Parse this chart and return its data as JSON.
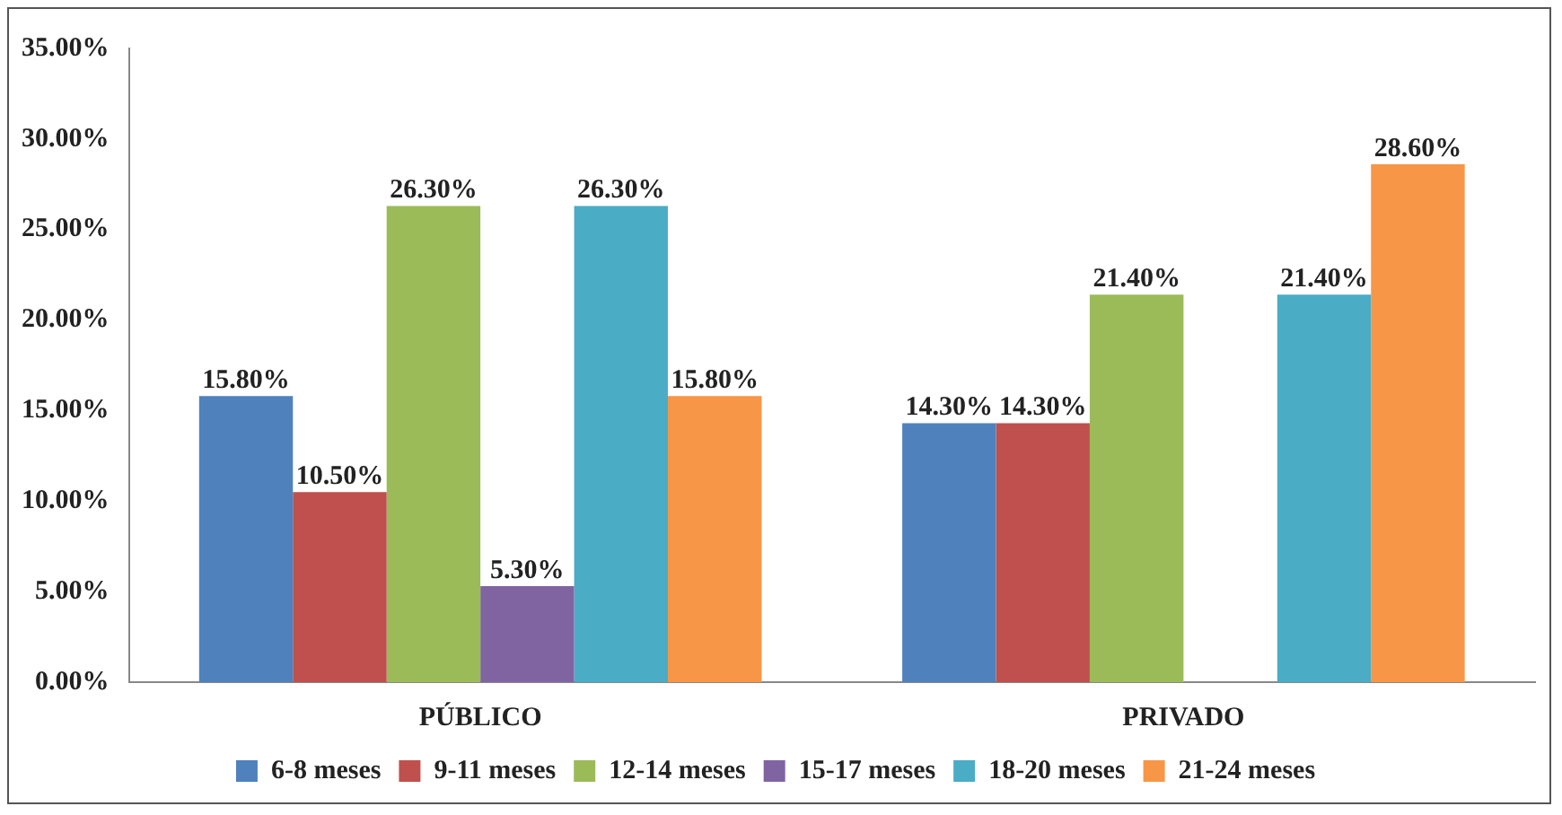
{
  "chart_data": {
    "type": "bar",
    "categories": [
      "PÚBLICO",
      "PRIVADO"
    ],
    "series": [
      {
        "name": "6-8 meses",
        "color": "#4f81bd",
        "values": [
          15.8,
          14.3
        ],
        "value_labels": [
          "15.80%",
          "14.30%"
        ]
      },
      {
        "name": "9-11 meses",
        "color": "#c0504d",
        "values": [
          10.5,
          14.3
        ],
        "value_labels": [
          "10.50%",
          "14.30%"
        ]
      },
      {
        "name": "12-14 meses",
        "color": "#9bbb59",
        "values": [
          26.3,
          21.4
        ],
        "value_labels": [
          "26.30%",
          "21.40%"
        ]
      },
      {
        "name": "15-17 meses",
        "color": "#8064a2",
        "values": [
          5.3,
          null
        ],
        "value_labels": [
          "5.30%",
          null
        ]
      },
      {
        "name": "18-20 meses",
        "color": "#4bacc6",
        "values": [
          26.3,
          21.4
        ],
        "value_labels": [
          "26.30%",
          "21.40%"
        ]
      },
      {
        "name": "21-24 meses",
        "color": "#f79646",
        "values": [
          15.8,
          28.6
        ],
        "value_labels": [
          "15.80%",
          "28.60%"
        ]
      }
    ],
    "ylim": [
      0,
      35
    ],
    "yticks": [
      {
        "value": 0,
        "label": "0.00%"
      },
      {
        "value": 5,
        "label": "5.00%"
      },
      {
        "value": 10,
        "label": "10.00%"
      },
      {
        "value": 15,
        "label": "15.00%"
      },
      {
        "value": 20,
        "label": "20.00%"
      },
      {
        "value": 25,
        "label": "25.00%"
      },
      {
        "value": 30,
        "label": "30.00%"
      },
      {
        "value": 35,
        "label": "35.00%"
      }
    ],
    "grid": false,
    "legend": "bottom"
  }
}
